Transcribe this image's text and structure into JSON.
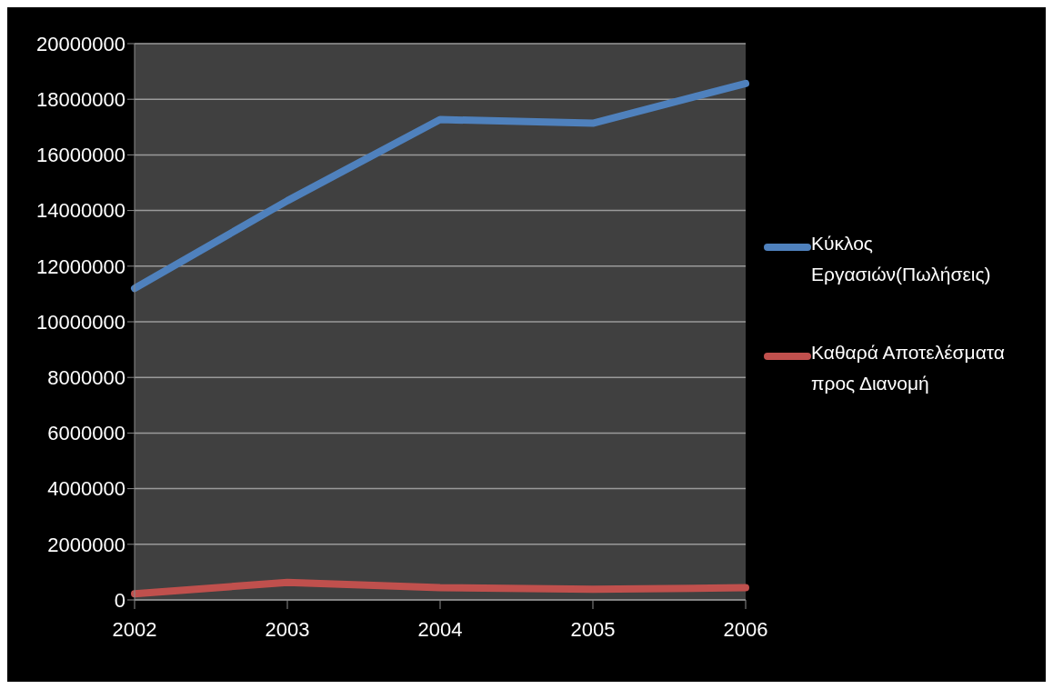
{
  "chart_data": {
    "type": "line",
    "categories": [
      "2002",
      "2003",
      "2004",
      "2005",
      "2006"
    ],
    "series": [
      {
        "name": "Κύκλος Εργασιών(Πωλήσεις)",
        "color": "#4f81bd",
        "values": [
          11200000,
          14350000,
          17270000,
          17140000,
          18570000
        ]
      },
      {
        "name": "Καθαρά Αποτελέσματα προς Διανομή",
        "color": "#c0504d",
        "values": [
          220000,
          630000,
          440000,
          380000,
          440000
        ]
      }
    ],
    "ylim": [
      0,
      20000000
    ],
    "yticks": [
      0,
      2000000,
      4000000,
      6000000,
      8000000,
      10000000,
      12000000,
      14000000,
      16000000,
      18000000,
      20000000
    ],
    "grid": "y",
    "legend": "right",
    "marker": "none",
    "line_style": "solid"
  }
}
